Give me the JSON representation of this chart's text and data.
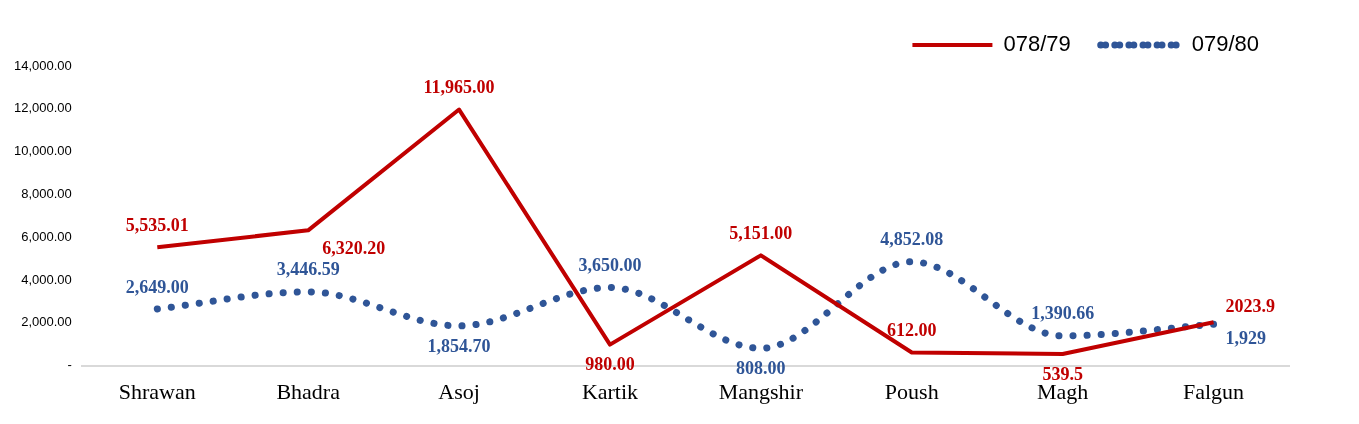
{
  "chart_data": {
    "type": "line",
    "categories": [
      "Shrawan",
      "Bhadra",
      "Asoj",
      "Kartik",
      "Mangshir",
      "Poush",
      "Magh",
      "Falgun"
    ],
    "series": [
      {
        "name": "078/79",
        "color": "#c00000",
        "line_style": "solid",
        "values": [
          5535.01,
          6320.2,
          11965,
          980,
          5151,
          612,
          539.5,
          2023.9
        ],
        "value_labels": [
          "5,535.01",
          "6,320.20",
          "11,965.00",
          "980.00",
          "5,151.00",
          "612.00",
          "539.5",
          "2023.9"
        ]
      },
      {
        "name": "079/80",
        "color": "#2f5597",
        "line_style": "dotted",
        "values": [
          2649,
          3446.59,
          1854.7,
          3650,
          808,
          4852.08,
          1390.66,
          1929
        ],
        "value_labels": [
          "2,649.00",
          "3,446.59",
          "1,854.70",
          "3,650.00",
          "808.00",
          "4,852.08",
          "1,390.66",
          "1,929"
        ]
      }
    ],
    "ylim": [
      0,
      14000
    ],
    "yticks": [
      {
        "value": 0,
        "label": "-"
      },
      {
        "value": 2000,
        "label": "2,000.00"
      },
      {
        "value": 4000,
        "label": "4,000.00"
      },
      {
        "value": 6000,
        "label": "6,000.00"
      },
      {
        "value": 8000,
        "label": "8,000.00"
      },
      {
        "value": 10000,
        "label": "10,000.00"
      },
      {
        "value": 12000,
        "label": "12,000.00"
      },
      {
        "value": 14000,
        "label": "14,000.00"
      }
    ],
    "grid": false,
    "legend": "top right",
    "marker": "none"
  }
}
